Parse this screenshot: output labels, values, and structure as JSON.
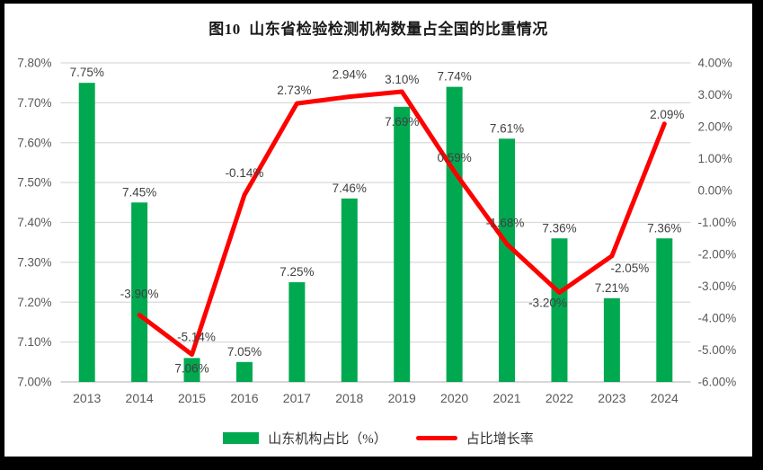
{
  "title": "图10  山东省检验检测机构数量占全国的比重情况",
  "legend": {
    "bar_label": "山东机构占比（%）",
    "line_label": "占比增长率"
  },
  "colors": {
    "bar": "#00A950",
    "line": "#FE0000",
    "grid": "#D9D9D9",
    "baseline": "#BFBFBF",
    "axis_text": "#595959",
    "label_text": "#404040",
    "panel_bg": "#FFFFFF",
    "outer_bg": "#000000"
  },
  "chart_data": {
    "type": "bar+line combo",
    "title": "图10  山东省检验检测机构数量占全国的比重情况",
    "categories": [
      "2013",
      "2014",
      "2015",
      "2016",
      "2017",
      "2018",
      "2019",
      "2020",
      "2021",
      "2022",
      "2023",
      "2024"
    ],
    "series": [
      {
        "name": "山东机构占比（%）",
        "type": "bar",
        "yaxis": "left",
        "color": "#00A950",
        "values": [
          7.75,
          7.45,
          7.06,
          7.05,
          7.25,
          7.46,
          7.69,
          7.74,
          7.61,
          7.36,
          7.21,
          7.36
        ],
        "labels": [
          "7.75%",
          "7.45%",
          "7.06%",
          "7.05%",
          "7.25%",
          "7.46%",
          "7.69%",
          "7.74%",
          "7.61%",
          "7.36%",
          "7.21%",
          "7.36%"
        ]
      },
      {
        "name": "占比增长率",
        "type": "line",
        "yaxis": "right",
        "color": "#FE0000",
        "values": [
          null,
          -3.9,
          -5.14,
          -0.14,
          2.73,
          2.94,
          3.1,
          0.59,
          -1.68,
          -3.2,
          -2.05,
          2.09
        ],
        "labels": [
          "",
          "-3.90%",
          "-5.14%",
          "-0.14%",
          "2.73%",
          "2.94%",
          "3.10%",
          "0.59%",
          "-1.68%",
          "-3.20%",
          "-2.05%",
          "2.09%"
        ]
      }
    ],
    "left_axis": {
      "min": 7.0,
      "max": 7.8,
      "step": 0.1,
      "tick_labels": [
        "7.80%",
        "7.70%",
        "7.60%",
        "7.50%",
        "7.40%",
        "7.30%",
        "7.20%",
        "7.10%",
        "7.00%"
      ]
    },
    "right_axis": {
      "min": -6.0,
      "max": 4.0,
      "step": 1.0,
      "tick_labels": [
        "4.00%",
        "3.00%",
        "2.00%",
        "1.00%",
        "0.00%",
        "-1.00%",
        "-2.00%",
        "-3.00%",
        "-4.00%",
        "-5.00%",
        "-6.00%"
      ]
    },
    "grid": true,
    "legend_position": "bottom"
  }
}
